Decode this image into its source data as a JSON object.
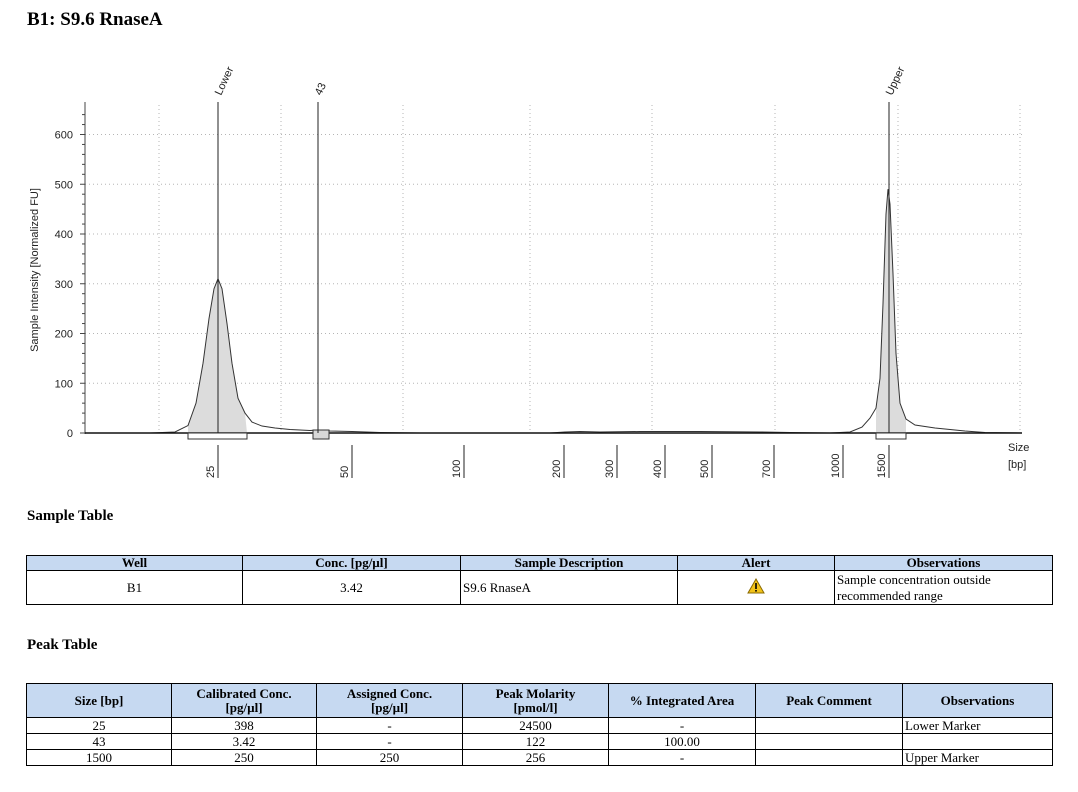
{
  "page_title": "B1: S9.6 RnaseA",
  "chart_data": {
    "type": "line",
    "ylabel": "Sample Intensity [Normalized FU]",
    "xlabel": "Size\n[bp]",
    "xlabel_line1": "Size",
    "xlabel_line2": "[bp]",
    "ylim": [
      -10,
      660
    ],
    "y_ticks": [
      0,
      100,
      200,
      300,
      400,
      500,
      600
    ],
    "x_ticks": [
      "25",
      "50",
      "100",
      "200",
      "300",
      "400",
      "500",
      "700",
      "1000",
      "1500"
    ],
    "peak_labels": [
      {
        "label": "Lower",
        "size_bp": 25
      },
      {
        "label": "43",
        "size_bp": 43
      },
      {
        "label": "Upper",
        "size_bp": 1500
      }
    ],
    "peaks": [
      {
        "size_bp": 25,
        "intensity": 310
      },
      {
        "size_bp": 43,
        "intensity": 3
      },
      {
        "size_bp": 1500,
        "intensity": 490
      }
    ],
    "grid": true
  },
  "sample_table": {
    "title": "Sample Table",
    "headers": [
      "Well",
      "Conc. [pg/µl]",
      "Sample Description",
      "Alert",
      "Observations"
    ],
    "row": {
      "well": "B1",
      "conc": "3.42",
      "description": "S9.6 RnaseA",
      "alert_icon": "warning-icon",
      "observations_line1": "Sample concentration outside",
      "observations_line2": "recommended range"
    }
  },
  "peak_table": {
    "title": "Peak Table",
    "headers": [
      {
        "l1": "Size [bp]",
        "l2": ""
      },
      {
        "l1": "Calibrated Conc.",
        "l2": "[pg/µl]"
      },
      {
        "l1": "Assigned Conc.",
        "l2": "[pg/µl]"
      },
      {
        "l1": "Peak Molarity",
        "l2": "[pmol/l]"
      },
      {
        "l1": "% Integrated Area",
        "l2": ""
      },
      {
        "l1": "Peak Comment",
        "l2": ""
      },
      {
        "l1": "Observations",
        "l2": ""
      }
    ],
    "rows": [
      {
        "size": "25",
        "cal": "398",
        "assigned": "-",
        "molarity": "24500",
        "area": "-",
        "comment": "",
        "obs": "Lower Marker"
      },
      {
        "size": "43",
        "cal": "3.42",
        "assigned": "-",
        "molarity": "122",
        "area": "100.00",
        "comment": "",
        "obs": ""
      },
      {
        "size": "1500",
        "cal": "250",
        "assigned": "250",
        "molarity": "256",
        "area": "-",
        "comment": "",
        "obs": "Upper Marker"
      }
    ]
  }
}
